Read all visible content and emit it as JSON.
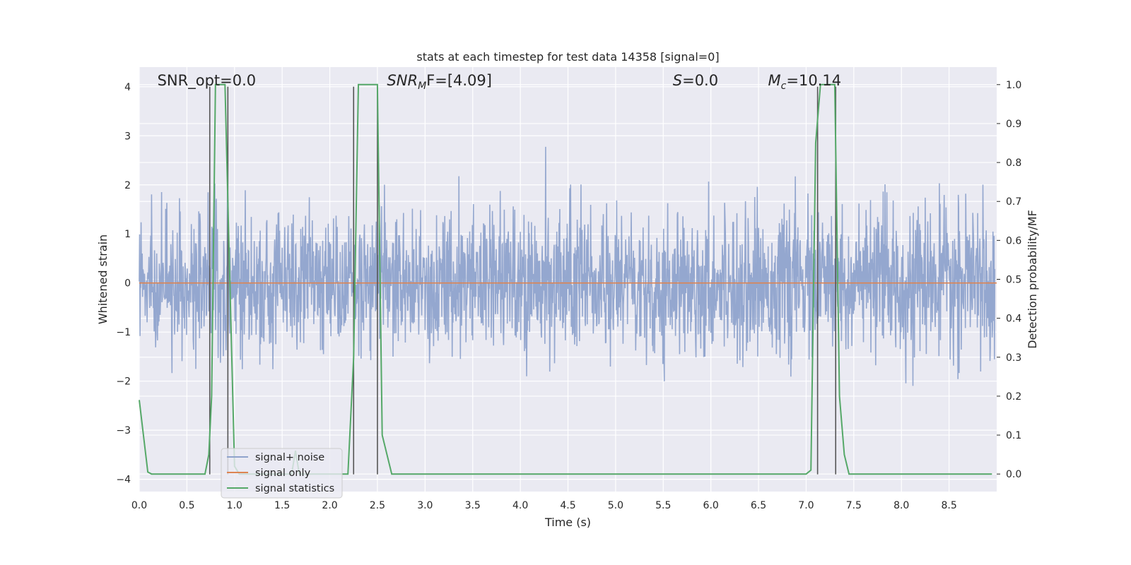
{
  "chart_data": {
    "type": "line",
    "title": "stats at each timestep for test data 14358 [signal=0]",
    "xlabel": "Time (s)",
    "ylabel": "Whitened strain",
    "y2label": "Detection probability/MF",
    "xlim": [
      0.0,
      9.0
    ],
    "ylim": [
      -4.25,
      4.4
    ],
    "y2lim": [
      -0.045,
      1.045
    ],
    "xticks": [
      "0.0",
      "0.5",
      "1.0",
      "1.5",
      "2.0",
      "2.5",
      "3.0",
      "3.5",
      "4.0",
      "4.5",
      "5.0",
      "5.5",
      "6.0",
      "6.5",
      "7.0",
      "7.5",
      "8.0",
      "8.5"
    ],
    "yticks": [
      "4",
      "3",
      "2",
      "1",
      "0",
      "−1",
      "−2",
      "−3",
      "−4"
    ],
    "y2ticks": [
      "1.0",
      "0.9",
      "0.8",
      "0.7",
      "0.6",
      "0.5",
      "0.4",
      "0.3",
      "0.2",
      "0.1",
      "0.0"
    ],
    "grid": true,
    "legend_position": "lower-left",
    "annotations": [
      {
        "pre": "SNR_opt=0.0",
        "main": "",
        "sub": "",
        "post": "",
        "x": 0.19
      },
      {
        "pre": "",
        "main": "SNR",
        "sub": "M",
        "post": "F=[4.09]",
        "italic": true,
        "x": 2.6
      },
      {
        "pre": "",
        "main": "S",
        "sub": "",
        "post": "=0.0",
        "italic": true,
        "x": 5.6
      },
      {
        "pre": "",
        "main": "M",
        "sub": "c",
        "post": "=10.14",
        "italic": true,
        "x": 6.6
      }
    ],
    "series": [
      {
        "name": "signal+ noise",
        "color": "#8fa3cc",
        "kind": "strain",
        "sigma": 0.72
      },
      {
        "name": "signal only",
        "color": "#dd8452",
        "kind": "flat",
        "value": 0.0
      },
      {
        "name": "signal statistics",
        "color": "#55a868",
        "axis": "right",
        "x": [
          0.0,
          0.09,
          0.13,
          0.2,
          0.69,
          0.73,
          0.76,
          0.8,
          0.9,
          0.94,
          1.0,
          1.05,
          1.6,
          1.64,
          1.68,
          2.19,
          2.25,
          2.3,
          2.4,
          2.5,
          2.55,
          2.65,
          2.72,
          7.0,
          7.05,
          7.1,
          7.15,
          7.2,
          7.3,
          7.35,
          7.4,
          7.45,
          8.95
        ],
        "y": [
          0.19,
          0.005,
          0.0,
          0.0,
          0.0,
          0.05,
          0.2,
          1.0,
          1.0,
          0.6,
          0.02,
          0.0,
          0.0,
          0.06,
          0.0,
          0.0,
          0.3,
          1.0,
          1.0,
          1.0,
          0.1,
          0.0,
          0.0,
          0.0,
          0.01,
          0.85,
          1.0,
          1.0,
          1.0,
          0.2,
          0.05,
          0.0,
          0.0
        ]
      }
    ],
    "vlines": [
      0.74,
      0.93,
      2.25,
      2.5,
      7.12,
      7.31
    ]
  }
}
